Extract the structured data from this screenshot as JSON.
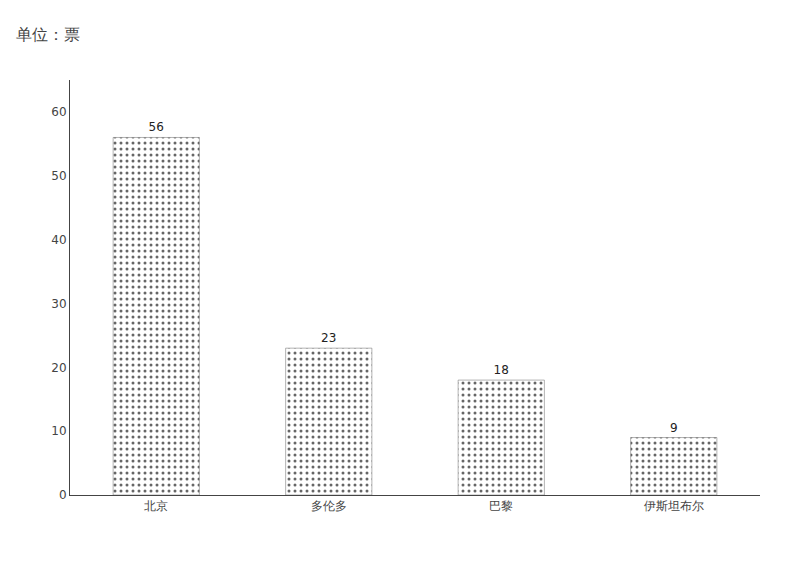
{
  "chart_data": {
    "type": "bar",
    "title": "单位：票",
    "categories": [
      "北京",
      "多伦多",
      "巴黎",
      "伊斯坦布尔"
    ],
    "values": [
      56,
      23,
      18,
      9
    ],
    "color": "#999999",
    "ylim": [
      0,
      65
    ],
    "yticks": [
      0,
      10,
      20,
      30,
      40,
      50,
      60
    ],
    "grid": false,
    "data_labels": true
  }
}
